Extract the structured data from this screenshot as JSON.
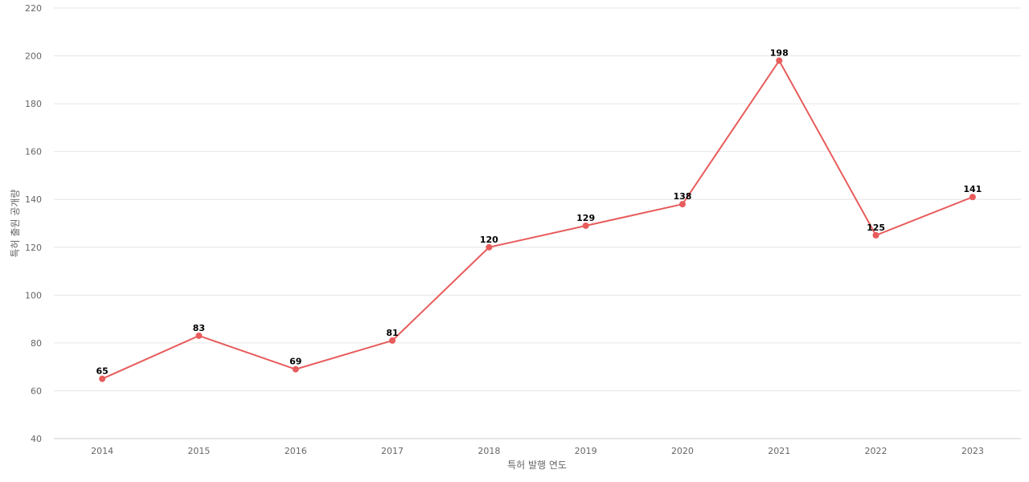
{
  "chart_data": {
    "type": "line",
    "title": "",
    "xlabel": "특허 발행 연도",
    "ylabel": "특허 출원 공개량",
    "categories": [
      "2014",
      "2015",
      "2016",
      "2017",
      "2018",
      "2019",
      "2020",
      "2021",
      "2022",
      "2023"
    ],
    "series": [
      {
        "values": [
          65,
          83,
          69,
          81,
          120,
          129,
          138,
          198,
          125,
          141
        ],
        "color": "#e85c5c"
      }
    ],
    "ylim": [
      40,
      220
    ],
    "yticks": [
      40,
      60,
      80,
      100,
      120,
      140,
      160,
      180,
      200,
      220
    ],
    "grid": true,
    "data_labels": true,
    "legend": "none"
  }
}
